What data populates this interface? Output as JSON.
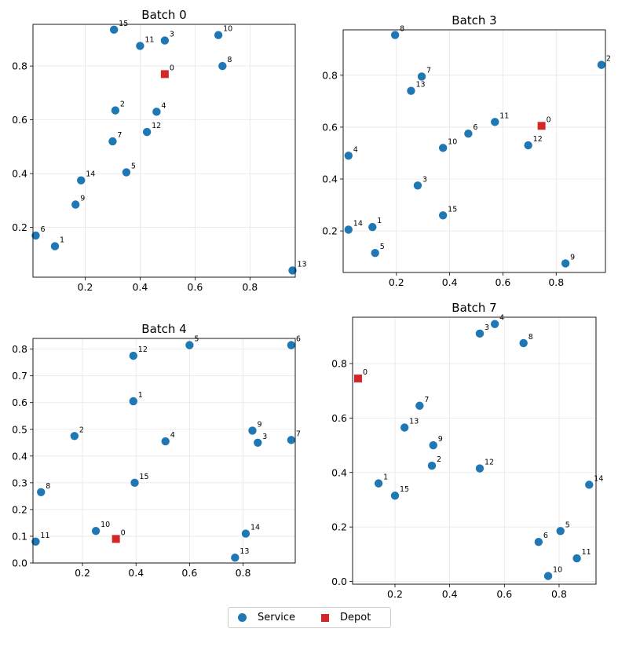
{
  "legend": {
    "service_label": "Service",
    "depot_label": "Depot"
  },
  "colors": {
    "service": "#1f77b4",
    "depot": "#d62728",
    "grid": "#e6e6e6"
  },
  "chart_data": [
    {
      "type": "scatter",
      "title": "Batch 0",
      "xlim": [
        0.01,
        0.965
      ],
      "ylim": [
        0.015,
        0.955
      ],
      "xticks": [
        0.2,
        0.4,
        0.6,
        0.8
      ],
      "yticks": [
        0.2,
        0.4,
        0.6,
        0.8
      ],
      "grid": true,
      "depot": {
        "label": "0",
        "x": 0.49,
        "y": 0.77
      },
      "points": [
        {
          "label": "1",
          "x": 0.09,
          "y": 0.13
        },
        {
          "label": "2",
          "x": 0.31,
          "y": 0.635
        },
        {
          "label": "3",
          "x": 0.49,
          "y": 0.895
        },
        {
          "label": "4",
          "x": 0.46,
          "y": 0.63
        },
        {
          "label": "5",
          "x": 0.35,
          "y": 0.405
        },
        {
          "label": "6",
          "x": 0.02,
          "y": 0.17
        },
        {
          "label": "7",
          "x": 0.3,
          "y": 0.52
        },
        {
          "label": "8",
          "x": 0.7,
          "y": 0.8
        },
        {
          "label": "9",
          "x": 0.165,
          "y": 0.285
        },
        {
          "label": "10",
          "x": 0.685,
          "y": 0.915
        },
        {
          "label": "11",
          "x": 0.4,
          "y": 0.875
        },
        {
          "label": "12",
          "x": 0.425,
          "y": 0.555
        },
        {
          "label": "13",
          "x": 0.955,
          "y": 0.04
        },
        {
          "label": "14",
          "x": 0.185,
          "y": 0.375
        },
        {
          "label": "15",
          "x": 0.305,
          "y": 0.935
        }
      ]
    },
    {
      "type": "scatter",
      "title": "Batch 3",
      "xlim": [
        0.0,
        0.985
      ],
      "ylim": [
        0.04,
        0.975
      ],
      "xticks": [
        0.2,
        0.4,
        0.6,
        0.8
      ],
      "yticks": [
        0.2,
        0.4,
        0.6,
        0.8
      ],
      "grid": true,
      "depot": {
        "label": "0",
        "x": 0.745,
        "y": 0.605
      },
      "points": [
        {
          "label": "1",
          "x": 0.11,
          "y": 0.215
        },
        {
          "label": "2",
          "x": 0.97,
          "y": 0.84
        },
        {
          "label": "3",
          "x": 0.28,
          "y": 0.375
        },
        {
          "label": "4",
          "x": 0.02,
          "y": 0.49
        },
        {
          "label": "5",
          "x": 0.12,
          "y": 0.115
        },
        {
          "label": "6",
          "x": 0.47,
          "y": 0.575
        },
        {
          "label": "7",
          "x": 0.295,
          "y": 0.795
        },
        {
          "label": "8",
          "x": 0.195,
          "y": 0.955
        },
        {
          "label": "9",
          "x": 0.835,
          "y": 0.075
        },
        {
          "label": "10",
          "x": 0.375,
          "y": 0.52
        },
        {
          "label": "11",
          "x": 0.57,
          "y": 0.62
        },
        {
          "label": "12",
          "x": 0.695,
          "y": 0.53
        },
        {
          "label": "13",
          "x": 0.255,
          "y": 0.74
        },
        {
          "label": "14",
          "x": 0.02,
          "y": 0.205
        },
        {
          "label": "15",
          "x": 0.375,
          "y": 0.26
        }
      ]
    },
    {
      "type": "scatter",
      "title": "Batch 4",
      "xlim": [
        0.015,
        0.995
      ],
      "ylim": [
        0.0,
        0.84
      ],
      "xticks": [
        0.2,
        0.4,
        0.6,
        0.8
      ],
      "yticks": [
        0.0,
        0.1,
        0.2,
        0.3,
        0.4,
        0.5,
        0.6,
        0.7,
        0.8
      ],
      "grid": true,
      "depot": {
        "label": "0",
        "x": 0.325,
        "y": 0.09
      },
      "points": [
        {
          "label": "1",
          "x": 0.39,
          "y": 0.605
        },
        {
          "label": "2",
          "x": 0.17,
          "y": 0.475
        },
        {
          "label": "3",
          "x": 0.855,
          "y": 0.45
        },
        {
          "label": "4",
          "x": 0.51,
          "y": 0.455
        },
        {
          "label": "5",
          "x": 0.6,
          "y": 0.815
        },
        {
          "label": "6",
          "x": 0.98,
          "y": 0.815
        },
        {
          "label": "7",
          "x": 0.98,
          "y": 0.46
        },
        {
          "label": "8",
          "x": 0.045,
          "y": 0.265
        },
        {
          "label": "9",
          "x": 0.835,
          "y": 0.495
        },
        {
          "label": "10",
          "x": 0.25,
          "y": 0.12
        },
        {
          "label": "11",
          "x": 0.025,
          "y": 0.08
        },
        {
          "label": "12",
          "x": 0.39,
          "y": 0.775
        },
        {
          "label": "13",
          "x": 0.77,
          "y": 0.02
        },
        {
          "label": "14",
          "x": 0.81,
          "y": 0.11
        },
        {
          "label": "15",
          "x": 0.395,
          "y": 0.3
        }
      ]
    },
    {
      "type": "scatter",
      "title": "Batch 7",
      "xlim": [
        0.045,
        0.935
      ],
      "ylim": [
        -0.01,
        0.97
      ],
      "xticks": [
        0.2,
        0.4,
        0.6,
        0.8
      ],
      "yticks": [
        0.0,
        0.2,
        0.4,
        0.6,
        0.8
      ],
      "grid": true,
      "depot": {
        "label": "0",
        "x": 0.065,
        "y": 0.745
      },
      "points": [
        {
          "label": "1",
          "x": 0.14,
          "y": 0.36
        },
        {
          "label": "2",
          "x": 0.335,
          "y": 0.425
        },
        {
          "label": "3",
          "x": 0.51,
          "y": 0.91
        },
        {
          "label": "4",
          "x": 0.565,
          "y": 0.945
        },
        {
          "label": "5",
          "x": 0.805,
          "y": 0.185
        },
        {
          "label": "6",
          "x": 0.725,
          "y": 0.145
        },
        {
          "label": "7",
          "x": 0.29,
          "y": 0.645
        },
        {
          "label": "8",
          "x": 0.67,
          "y": 0.875
        },
        {
          "label": "9",
          "x": 0.34,
          "y": 0.5
        },
        {
          "label": "10",
          "x": 0.76,
          "y": 0.02
        },
        {
          "label": "11",
          "x": 0.865,
          "y": 0.085
        },
        {
          "label": "12",
          "x": 0.51,
          "y": 0.415
        },
        {
          "label": "13",
          "x": 0.235,
          "y": 0.565
        },
        {
          "label": "14",
          "x": 0.91,
          "y": 0.355
        },
        {
          "label": "15",
          "x": 0.2,
          "y": 0.315
        }
      ]
    }
  ]
}
